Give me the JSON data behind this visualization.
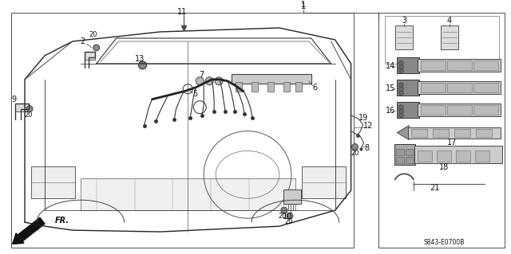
{
  "bg_color": "#ffffff",
  "part_code": "S843-E0700B",
  "fig_width": 6.4,
  "fig_height": 3.19,
  "dpi": 100,
  "gray_light": "#d8d8d8",
  "gray_mid": "#aaaaaa",
  "gray_dark": "#555555",
  "black": "#111111",
  "line_col": "#333333"
}
